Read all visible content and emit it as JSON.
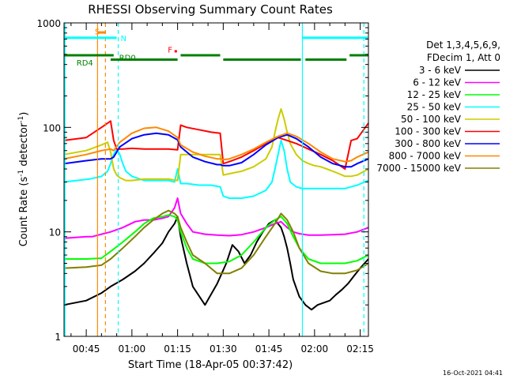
{
  "chart_data": {
    "type": "line",
    "title": "RHESSI Observing Summary Count Rates",
    "xlabel": "Start Time (18-Apr-05 00:37:42)",
    "ylabel_main": "Count Rate (s",
    "ylabel_exp": "-1",
    "ylabel_mid": " detector",
    "ylabel_exp2": "-1",
    "ylabel_end": ")",
    "x_range_min": [
      37.7,
      137.7
    ],
    "y_log": true,
    "ylim": [
      1,
      1000
    ],
    "x_ticks": [
      {
        "v": 45,
        "label": "00:45"
      },
      {
        "v": 60,
        "label": "01:00"
      },
      {
        "v": 75,
        "label": "01:15"
      },
      {
        "v": 90,
        "label": "01:30"
      },
      {
        "v": 105,
        "label": "01:45"
      },
      {
        "v": 120,
        "label": "02:00"
      },
      {
        "v": 135,
        "label": "02:15"
      }
    ],
    "y_ticks": [
      {
        "v": 1,
        "label": "1"
      },
      {
        "v": 10,
        "label": "10"
      },
      {
        "v": 100,
        "label": "100"
      },
      {
        "v": 1000,
        "label": "1000"
      }
    ],
    "legend_header": [
      "Det 1,3,4,5,6,9,",
      "FDecim 1, Att 0"
    ],
    "series": [
      {
        "name": "3 - 6 keV",
        "color": "#000000",
        "x": [
          37.7,
          45,
          50,
          53,
          57,
          61,
          64,
          67,
          70,
          72,
          74,
          75,
          76,
          78,
          80,
          84,
          88,
          91,
          93,
          95,
          97,
          99,
          101,
          103,
          105,
          107,
          109,
          110,
          111,
          112,
          113,
          115,
          117,
          119,
          121,
          123,
          125,
          127,
          129,
          131,
          133,
          135,
          137.7
        ],
        "y": [
          2,
          2.2,
          2.6,
          3,
          3.5,
          4.2,
          5,
          6.2,
          7.8,
          10,
          12,
          14,
          9,
          5,
          3,
          2,
          3.2,
          5,
          7.5,
          6.5,
          5,
          6,
          8,
          10,
          12,
          13,
          11,
          9,
          7,
          5,
          3.5,
          2.4,
          2,
          1.8,
          2,
          2.1,
          2.2,
          2.5,
          2.8,
          3.2,
          3.8,
          4.5,
          5.5
        ]
      },
      {
        "name": "6 - 12 keV",
        "color": "#ff00ff",
        "x": [
          37.7,
          45,
          47,
          50,
          53,
          57,
          61,
          64,
          67,
          70,
          72,
          74,
          75,
          76,
          78,
          80,
          84,
          88,
          92,
          96,
          100,
          104,
          107,
          109,
          111,
          113,
          115,
          118,
          122,
          126,
          130,
          134,
          137.7
        ],
        "y": [
          8.7,
          9,
          9,
          9.5,
          10,
          11,
          12.5,
          13,
          13,
          13.5,
          14,
          17,
          21,
          15,
          12,
          10,
          9.5,
          9.3,
          9.2,
          9.4,
          10,
          11,
          12,
          12.5,
          11,
          10,
          9.6,
          9.3,
          9.3,
          9.4,
          9.5,
          10,
          11
        ]
      },
      {
        "name": "12 - 25 keV",
        "color": "#00ff00",
        "x": [
          37.7,
          45,
          50,
          53,
          57,
          61,
          64,
          67,
          70,
          72,
          74,
          75,
          76,
          78,
          80,
          84,
          88,
          92,
          96,
          100,
          104,
          107,
          109,
          111,
          113,
          115,
          118,
          122,
          126,
          130,
          134,
          137.7
        ],
        "y": [
          5.5,
          5.5,
          5.6,
          6.5,
          8,
          10,
          12,
          13.5,
          14,
          14.5,
          14,
          13,
          10,
          7,
          5.5,
          5,
          5,
          5.2,
          6,
          8,
          11,
          13,
          14,
          12,
          9,
          7,
          5.5,
          5,
          5,
          5,
          5.3,
          6
        ]
      },
      {
        "name": "25 - 50 keV",
        "color": "#00ffff",
        "x": [
          37.7,
          46,
          50,
          52,
          53,
          54,
          55,
          56,
          57,
          58,
          60,
          64,
          68,
          72,
          74,
          75,
          76,
          78,
          82,
          86,
          89,
          90,
          92,
          96,
          100,
          104,
          106,
          107,
          108,
          109,
          110,
          111,
          112,
          114,
          116,
          118,
          120,
          122,
          124,
          126,
          128,
          130,
          132,
          134,
          137.7
        ],
        "y": [
          30,
          32,
          34,
          38,
          45,
          55,
          62,
          55,
          45,
          38,
          34,
          31,
          31,
          31,
          30,
          40,
          29,
          29,
          28,
          28,
          27,
          22,
          21,
          21,
          22,
          25,
          30,
          40,
          55,
          75,
          60,
          40,
          30,
          27,
          26,
          26,
          26,
          26,
          26,
          26,
          26,
          26,
          27,
          28,
          31
        ]
      },
      {
        "name": "50 - 100 keV",
        "color": "#cccc00",
        "x": [
          37.7,
          45,
          50,
          52,
          53,
          54,
          55,
          56,
          57,
          58,
          60,
          64,
          68,
          72,
          75,
          76,
          78,
          82,
          86,
          89,
          90,
          92,
          96,
          100,
          104,
          106,
          107,
          108,
          109,
          110,
          111,
          112,
          114,
          116,
          118,
          120,
          122,
          124,
          126,
          128,
          130,
          132,
          134,
          137.7
        ],
        "y": [
          55,
          60,
          68,
          72,
          58,
          40,
          35,
          33,
          32,
          31,
          31,
          32,
          32,
          32,
          31,
          55,
          55,
          55,
          55,
          55,
          35,
          36,
          38,
          42,
          50,
          65,
          90,
          120,
          150,
          120,
          90,
          70,
          55,
          48,
          45,
          43,
          42,
          40,
          38,
          36,
          34,
          34,
          35,
          40
        ]
      },
      {
        "name": "100 - 300 keV",
        "color": "#ff0000",
        "x": [
          37.7,
          45,
          50,
          53,
          54,
          55,
          57,
          60,
          64,
          68,
          72,
          75,
          76,
          78,
          82,
          86,
          89,
          90,
          92,
          96,
          100,
          104,
          108,
          111,
          114,
          118,
          122,
          126,
          130,
          132,
          134,
          137.7
        ],
        "y": [
          75,
          80,
          100,
          115,
          75,
          62,
          62,
          63,
          62,
          62,
          62,
          61,
          105,
          100,
          95,
          90,
          88,
          45,
          47,
          52,
          60,
          70,
          80,
          75,
          70,
          62,
          55,
          48,
          40,
          75,
          78,
          110
        ]
      },
      {
        "name": "300 - 800 keV",
        "color": "#0000ff",
        "x": [
          37.7,
          45,
          50,
          53,
          54,
          56,
          60,
          64,
          68,
          72,
          75,
          76,
          80,
          84,
          88,
          89,
          90,
          92,
          96,
          100,
          104,
          108,
          111,
          114,
          118,
          122,
          126,
          130,
          132,
          134,
          137.7
        ],
        "y": [
          45,
          48,
          50,
          50,
          52,
          65,
          78,
          85,
          88,
          85,
          76,
          65,
          52,
          47,
          44,
          44,
          43,
          43,
          46,
          55,
          68,
          80,
          85,
          78,
          65,
          52,
          45,
          42,
          42,
          45,
          50
        ]
      },
      {
        "name": "800 - 7000 keV",
        "color": "#ff8800",
        "x": [
          37.7,
          45,
          50,
          53,
          54,
          56,
          60,
          64,
          68,
          72,
          75,
          76,
          80,
          84,
          88,
          89,
          90,
          92,
          96,
          100,
          104,
          108,
          111,
          114,
          118,
          122,
          126,
          130,
          132,
          134,
          137.7
        ],
        "y": [
          50,
          55,
          60,
          62,
          60,
          72,
          88,
          98,
          100,
          92,
          80,
          68,
          58,
          53,
          50,
          50,
          49,
          50,
          55,
          62,
          72,
          82,
          88,
          82,
          70,
          58,
          50,
          47,
          48,
          52,
          58
        ]
      },
      {
        "name": "7000 - 15000 keV",
        "color": "#808000",
        "x": [
          37.7,
          45,
          50,
          53,
          57,
          61,
          64,
          67,
          70,
          72,
          74,
          75,
          76,
          78,
          80,
          84,
          88,
          92,
          96,
          100,
          104,
          107,
          109,
          111,
          113,
          115,
          118,
          122,
          126,
          130,
          134,
          137.7
        ],
        "y": [
          4.5,
          4.6,
          4.8,
          5.5,
          7,
          9,
          11,
          13,
          15,
          16,
          15,
          14,
          11,
          8,
          6,
          5,
          4,
          4,
          4.5,
          6,
          9,
          12,
          15,
          13,
          10,
          7,
          5,
          4.2,
          4,
          4,
          4.3,
          5
        ]
      }
    ],
    "vlines": [
      {
        "x": 38.0,
        "color": "#00ffff",
        "dash": false
      },
      {
        "x": 48.7,
        "color": "#ff8800",
        "dash": false
      },
      {
        "x": 51.3,
        "color": "#ff8800",
        "dash": true
      },
      {
        "x": 55.5,
        "color": "#00ffff",
        "dash": true
      },
      {
        "x": 116.0,
        "color": "#00ffff",
        "dash": false
      },
      {
        "x": 136.2,
        "color": "#00ffff",
        "dash": true
      }
    ],
    "bars": [
      {
        "x0": 37.7,
        "x1": 55.0,
        "level": 720,
        "color": "#00ffff"
      },
      {
        "x0": 116.0,
        "x1": 137.5,
        "level": 720,
        "color": "#00ffff"
      },
      {
        "x0": 48.7,
        "x1": 51.3,
        "level": 810,
        "color": "#ff8800"
      },
      {
        "x0": 74.0,
        "x1": 74.8,
        "level": 535,
        "color": "#ff0000"
      },
      {
        "x0": 37.7,
        "x1": 54.0,
        "level": 490,
        "color": "#008000"
      },
      {
        "x0": 53.0,
        "x1": 75.0,
        "level": 445,
        "color": "#008000"
      },
      {
        "x0": 76.0,
        "x1": 89.0,
        "level": 490,
        "color": "#008000"
      },
      {
        "x0": 90.0,
        "x1": 115.5,
        "level": 445,
        "color": "#008000"
      },
      {
        "x0": 117.0,
        "x1": 130.5,
        "level": 445,
        "color": "#008000"
      },
      {
        "x0": 131.5,
        "x1": 137.7,
        "level": 490,
        "color": "#008000"
      }
    ],
    "annotations": [
      {
        "text": "S",
        "x": 47.8,
        "level": 830,
        "color": "#ff8800"
      },
      {
        "text": "N",
        "x": 56.3,
        "level": 720,
        "color": "#00ffff"
      },
      {
        "text": "F",
        "x": 71.8,
        "level": 560,
        "color": "#ff0000"
      },
      {
        "text": "RD0",
        "x": 55.8,
        "level": 470,
        "color": "#008000"
      },
      {
        "text": "RD4",
        "x": 41.8,
        "level": 420,
        "color": "#008000"
      }
    ]
  },
  "footer": {
    "timestamp": "16-Oct-2021 04:41"
  }
}
